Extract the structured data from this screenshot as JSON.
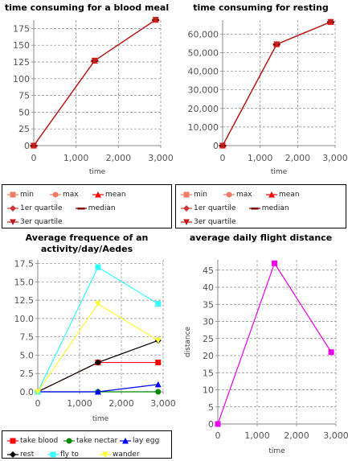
{
  "chart_data": [
    {
      "type": "line",
      "title": "time consuming for a blood meal",
      "xlabel": "time",
      "ylabel": "",
      "xlim": [
        0,
        3000
      ],
      "ylim": [
        0,
        187.5
      ],
      "x_ticks": [
        "0",
        "1,000",
        "2,000",
        "3,000"
      ],
      "y_ticks": [
        "0",
        "25",
        "50",
        "75",
        "100",
        "125",
        "150",
        "175"
      ],
      "grid": true,
      "legend_position": "below",
      "series": [
        {
          "name": "min",
          "color": "#ef7b6b",
          "marker": "square",
          "x": [
            0,
            1440,
            2880
          ],
          "y": [
            0,
            127,
            188
          ]
        },
        {
          "name": "max",
          "color": "#ef7b6b",
          "marker": "circle",
          "x": [
            0,
            1440,
            2880
          ],
          "y": [
            0,
            127,
            188
          ]
        },
        {
          "name": "mean",
          "color": "#ff0000",
          "marker": "triangle-up",
          "x": [
            0,
            1440,
            2880
          ],
          "y": [
            0,
            127,
            188
          ]
        },
        {
          "name": "1er quartile",
          "color": "#cc3b3b",
          "marker": "diamond",
          "x": [
            0,
            1440,
            2880
          ],
          "y": [
            0,
            127,
            188
          ]
        },
        {
          "name": "median",
          "color": "#800000",
          "marker": "hbar",
          "x": [
            0,
            1440,
            2880
          ],
          "y": [
            0,
            127,
            188
          ]
        },
        {
          "name": "3er quartile",
          "color": "#bf1f1f",
          "marker": "triangle-down",
          "x": [
            0,
            1440,
            2880
          ],
          "y": [
            0,
            127,
            188
          ]
        }
      ]
    },
    {
      "type": "line",
      "title": "time consuming for resting",
      "xlabel": "time",
      "ylabel": "",
      "xlim": [
        0,
        3000
      ],
      "ylim": [
        0,
        67500
      ],
      "x_ticks": [
        "0",
        "1,000",
        "2,000",
        "3,000"
      ],
      "y_ticks": [
        "0",
        "10,000",
        "20,000",
        "30,000",
        "40,000",
        "50,000",
        "60,000"
      ],
      "grid": true,
      "legend_position": "below",
      "series": [
        {
          "name": "min",
          "color": "#ef7b6b",
          "marker": "square",
          "x": [
            0,
            1440,
            2880
          ],
          "y": [
            0,
            54500,
            66500
          ]
        },
        {
          "name": "max",
          "color": "#ef7b6b",
          "marker": "circle",
          "x": [
            0,
            1440,
            2880
          ],
          "y": [
            0,
            54500,
            66500
          ]
        },
        {
          "name": "mean",
          "color": "#ff0000",
          "marker": "triangle-up",
          "x": [
            0,
            1440,
            2880
          ],
          "y": [
            0,
            54500,
            66500
          ]
        },
        {
          "name": "1er quartile",
          "color": "#cc3b3b",
          "marker": "diamond",
          "x": [
            0,
            1440,
            2880
          ],
          "y": [
            0,
            54500,
            66500
          ]
        },
        {
          "name": "median",
          "color": "#800000",
          "marker": "hbar",
          "x": [
            0,
            1440,
            2880
          ],
          "y": [
            0,
            54500,
            66500
          ]
        },
        {
          "name": "3er quartile",
          "color": "#bf1f1f",
          "marker": "triangle-down",
          "x": [
            0,
            1440,
            2880
          ],
          "y": [
            0,
            54500,
            66500
          ]
        }
      ]
    },
    {
      "type": "line",
      "title": "Average frequence of an activity/day/Aedes",
      "xlabel": "time",
      "ylabel": "",
      "xlim": [
        0,
        3000
      ],
      "ylim": [
        0,
        18
      ],
      "x_ticks": [
        "0",
        "1,000",
        "2,000",
        "3,000"
      ],
      "y_ticks": [
        "0.0",
        "2.5",
        "5.0",
        "7.5",
        "10.0",
        "12.5",
        "15.0",
        "17.5"
      ],
      "grid": true,
      "legend_position": "below",
      "series": [
        {
          "name": "take blood",
          "color": "#ff0000",
          "marker": "square",
          "x": [
            0,
            1440,
            2880
          ],
          "y": [
            0,
            4,
            4
          ]
        },
        {
          "name": "take nectar",
          "color": "#008800",
          "marker": "circle",
          "x": [
            0,
            1440,
            2880
          ],
          "y": [
            0,
            0,
            0
          ]
        },
        {
          "name": "lay egg",
          "color": "#0000ff",
          "marker": "triangle-up",
          "x": [
            0,
            1440,
            2880
          ],
          "y": [
            0,
            0,
            1
          ]
        },
        {
          "name": "rest",
          "color": "#000000",
          "marker": "diamond",
          "x": [
            0,
            1440,
            2880
          ],
          "y": [
            0,
            4,
            7
          ]
        },
        {
          "name": "fly to",
          "color": "#33ffff",
          "marker": "square",
          "x": [
            0,
            1440,
            2880
          ],
          "y": [
            0,
            17,
            12
          ]
        },
        {
          "name": "wander",
          "color": "#ffff33",
          "marker": "triangle-down",
          "x": [
            0,
            1440,
            2880
          ],
          "y": [
            0,
            12,
            7
          ]
        }
      ]
    },
    {
      "type": "line",
      "title": "average daily flight distance",
      "xlabel": "time",
      "ylabel": "distance",
      "xlim": [
        0,
        3000
      ],
      "ylim": [
        0,
        48
      ],
      "x_ticks": [
        "0",
        "1,000",
        "2,000",
        "3,000"
      ],
      "y_ticks": [
        "0",
        "5",
        "10",
        "15",
        "20",
        "25",
        "30",
        "35",
        "40",
        "45"
      ],
      "grid": true,
      "series": [
        {
          "color": "#ee00ee",
          "marker": "square",
          "x": [
            0,
            1440,
            2880
          ],
          "y": [
            0,
            47,
            21
          ]
        }
      ]
    }
  ]
}
